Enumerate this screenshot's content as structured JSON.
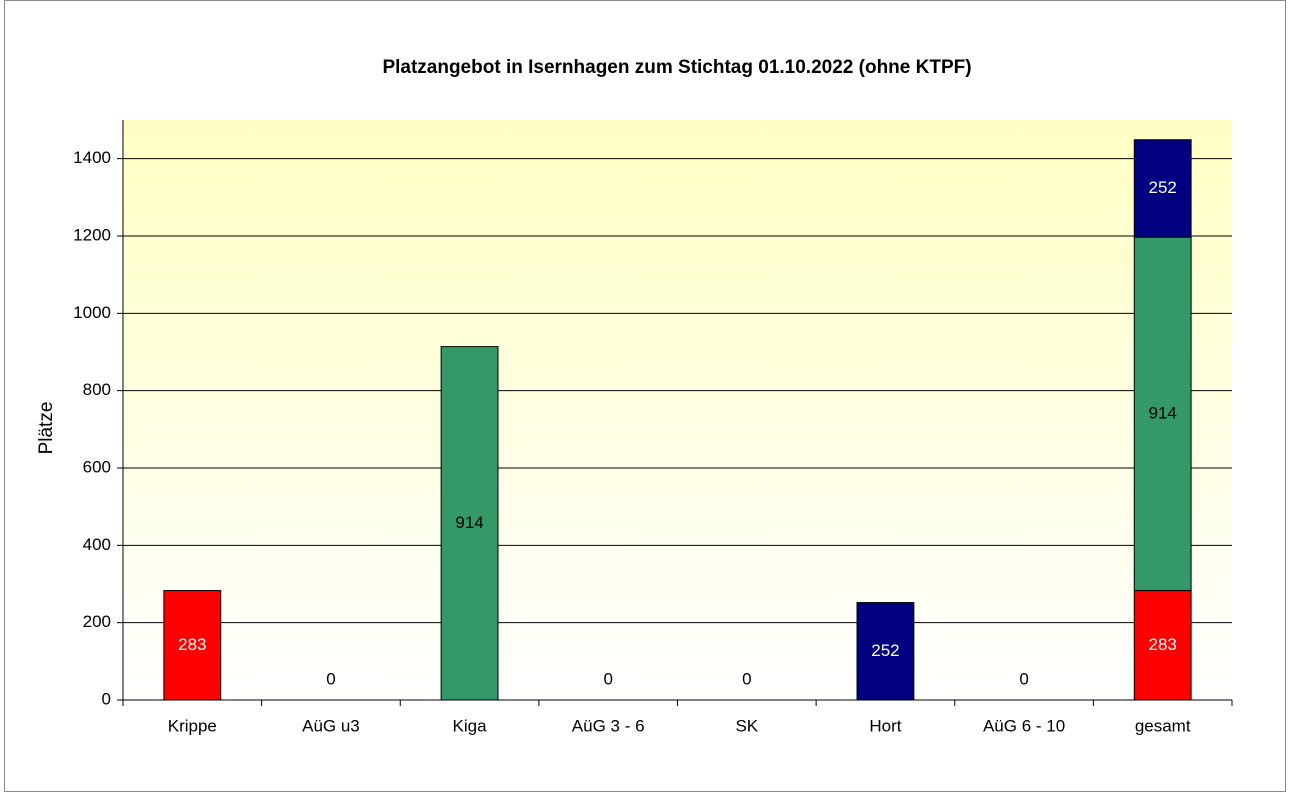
{
  "chart_data": {
    "type": "stacked_bar",
    "title": "Platzangebot in Isernhagen zum Stichtag 01.10.2022 (ohne KTPF)",
    "y_label": "Plätze",
    "categories": [
      "Krippe",
      "AüG u3",
      "Kiga",
      "AüG 3 - 6",
      "SK",
      "Hort",
      "AüG 6 - 10",
      "gesamt"
    ],
    "series": [
      {
        "color": "#ff0000",
        "values": [
          283,
          0,
          null,
          null,
          null,
          null,
          null,
          283
        ]
      },
      {
        "color": "#339966",
        "values": [
          null,
          null,
          914,
          0,
          0,
          null,
          null,
          914
        ]
      },
      {
        "color": "#000080",
        "values": [
          null,
          null,
          null,
          null,
          null,
          252,
          0,
          252
        ]
      }
    ],
    "ylim": [
      0,
      1500
    ],
    "yticks": [
      0,
      200,
      400,
      600,
      800,
      1000,
      1200,
      1400
    ],
    "grid": true
  }
}
